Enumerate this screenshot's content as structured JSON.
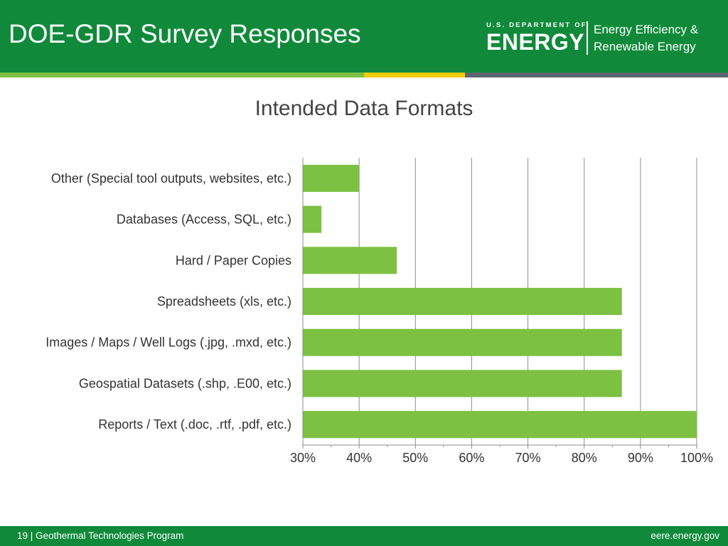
{
  "header": {
    "title": "DOE-GDR Survey Responses"
  },
  "logo": {
    "dept_line": "U.S. DEPARTMENT OF",
    "agency": "ENERGY",
    "office_line1": "Energy Efficiency &",
    "office_line2": "Renewable Energy"
  },
  "colors": {
    "header_green": "#108a3a",
    "bar_green": "#7cc142",
    "stripe_yellow": "#f2cb0c",
    "stripe_gray": "#5c6670"
  },
  "chart_data": {
    "type": "bar",
    "orientation": "horizontal",
    "title": "Intended Data Formats",
    "xlabel": "",
    "ylabel": "",
    "categories": [
      "Other (Special tool outputs, websites, etc.)",
      "Databases (Access, SQL, etc.)",
      "Hard / Paper Copies",
      "Spreadsheets (xls, etc.)",
      "Images / Maps / Well Logs (.jpg, .mxd, etc.)",
      "Geospatial Datasets (.shp, .E00, etc.)",
      "Reports / Text (.doc, .rtf, .pdf, etc.)"
    ],
    "values": [
      40,
      33.3,
      46.7,
      86.7,
      86.7,
      86.7,
      100
    ],
    "xlim": [
      30,
      100
    ],
    "ticks": [
      30,
      40,
      50,
      60,
      70,
      80,
      90,
      100
    ],
    "tick_labels": [
      "30%",
      "40%",
      "50%",
      "60%",
      "70%",
      "80%",
      "90%",
      "100%"
    ],
    "grid": true,
    "legend": "none"
  },
  "footer": {
    "left": "19 | Geothermal Technologies Program",
    "right": "eere.energy.gov"
  }
}
